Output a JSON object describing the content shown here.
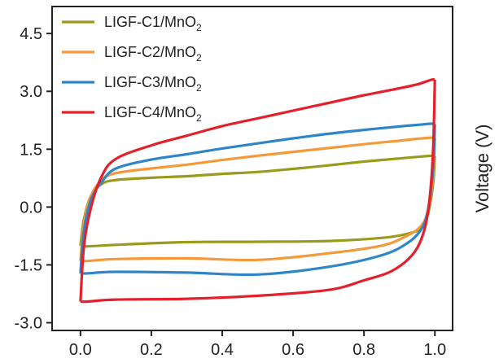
{
  "chart_data": {
    "type": "line",
    "title": "",
    "xlabel": "",
    "ylabel": "Voltage (V)",
    "xlim": [
      -0.08,
      1.05
    ],
    "ylim": [
      -3.2,
      5.2
    ],
    "xticks": [
      0.0,
      0.2,
      0.4,
      0.6,
      0.8,
      1.0
    ],
    "xtick_labels": [
      "0.0",
      "0.2",
      "0.4",
      "0.6",
      "0.8",
      "1.0"
    ],
    "yticks": [
      -3.0,
      -1.5,
      0.0,
      1.5,
      3.0,
      4.5
    ],
    "ytick_labels": [
      "-3.0",
      "-1.5",
      "0.0",
      "1.5",
      "3.0",
      "4.5"
    ],
    "grid": false,
    "legend_position": "top-left",
    "series": [
      {
        "name": "LIGF-C1/MnO2",
        "name_main": "LIGF-C1/MnO",
        "name_sub": "2",
        "color": "#9a9a1c",
        "forward": [
          [
            0.0,
            -1.0
          ],
          [
            0.01,
            -0.3
          ],
          [
            0.03,
            0.3
          ],
          [
            0.06,
            0.6
          ],
          [
            0.1,
            0.7
          ],
          [
            0.2,
            0.76
          ],
          [
            0.3,
            0.8
          ],
          [
            0.4,
            0.86
          ],
          [
            0.5,
            0.91
          ],
          [
            0.6,
            0.99
          ],
          [
            0.7,
            1.08
          ],
          [
            0.8,
            1.18
          ],
          [
            0.9,
            1.26
          ],
          [
            0.95,
            1.3
          ],
          [
            0.99,
            1.33
          ],
          [
            1.0,
            1.32
          ]
        ],
        "reverse": [
          [
            1.0,
            1.32
          ],
          [
            0.995,
            0.6
          ],
          [
            0.98,
            -0.2
          ],
          [
            0.96,
            -0.55
          ],
          [
            0.92,
            -0.7
          ],
          [
            0.85,
            -0.8
          ],
          [
            0.7,
            -0.88
          ],
          [
            0.5,
            -0.9
          ],
          [
            0.3,
            -0.91
          ],
          [
            0.1,
            -0.98
          ],
          [
            0.02,
            -1.02
          ],
          [
            0.0,
            -1.0
          ]
        ]
      },
      {
        "name": "LIGF-C2/MnO2",
        "name_main": "LIGF-C2/MnO",
        "name_sub": "2",
        "color": "#f39a3a",
        "forward": [
          [
            0.0,
            -1.4
          ],
          [
            0.01,
            -0.4
          ],
          [
            0.03,
            0.3
          ],
          [
            0.06,
            0.7
          ],
          [
            0.1,
            0.88
          ],
          [
            0.2,
            1.0
          ],
          [
            0.3,
            1.1
          ],
          [
            0.4,
            1.22
          ],
          [
            0.5,
            1.33
          ],
          [
            0.6,
            1.43
          ],
          [
            0.7,
            1.53
          ],
          [
            0.8,
            1.63
          ],
          [
            0.9,
            1.72
          ],
          [
            0.95,
            1.77
          ],
          [
            0.99,
            1.8
          ],
          [
            1.0,
            1.78
          ]
        ],
        "reverse": [
          [
            1.0,
            1.78
          ],
          [
            0.995,
            0.8
          ],
          [
            0.98,
            -0.1
          ],
          [
            0.96,
            -0.5
          ],
          [
            0.92,
            -0.75
          ],
          [
            0.85,
            -1.0
          ],
          [
            0.7,
            -1.2
          ],
          [
            0.5,
            -1.37
          ],
          [
            0.3,
            -1.33
          ],
          [
            0.1,
            -1.35
          ],
          [
            0.02,
            -1.4
          ],
          [
            0.0,
            -1.4
          ]
        ]
      },
      {
        "name": "LIGF-C3/MnO2",
        "name_main": "LIGF-C3/MnO",
        "name_sub": "2",
        "color": "#2e86c8",
        "forward": [
          [
            0.0,
            -1.72
          ],
          [
            0.01,
            -0.6
          ],
          [
            0.03,
            0.2
          ],
          [
            0.06,
            0.65
          ],
          [
            0.1,
            1.0
          ],
          [
            0.2,
            1.23
          ],
          [
            0.3,
            1.37
          ],
          [
            0.4,
            1.52
          ],
          [
            0.5,
            1.65
          ],
          [
            0.6,
            1.78
          ],
          [
            0.7,
            1.9
          ],
          [
            0.8,
            2.0
          ],
          [
            0.9,
            2.09
          ],
          [
            0.95,
            2.13
          ],
          [
            0.99,
            2.16
          ],
          [
            1.0,
            2.15
          ]
        ],
        "reverse": [
          [
            1.0,
            2.15
          ],
          [
            0.995,
            1.0
          ],
          [
            0.98,
            -0.1
          ],
          [
            0.96,
            -0.6
          ],
          [
            0.92,
            -0.95
          ],
          [
            0.85,
            -1.25
          ],
          [
            0.7,
            -1.55
          ],
          [
            0.5,
            -1.75
          ],
          [
            0.3,
            -1.7
          ],
          [
            0.1,
            -1.68
          ],
          [
            0.02,
            -1.72
          ],
          [
            0.0,
            -1.72
          ]
        ]
      },
      {
        "name": "LIGF-C4/MnO2",
        "name_main": "LIGF-C4/MnO",
        "name_sub": "2",
        "color": "#e3202b",
        "forward": [
          [
            0.0,
            -2.45
          ],
          [
            0.01,
            -1.0
          ],
          [
            0.03,
            0.0
          ],
          [
            0.06,
            0.8
          ],
          [
            0.1,
            1.25
          ],
          [
            0.2,
            1.6
          ],
          [
            0.3,
            1.85
          ],
          [
            0.4,
            2.1
          ],
          [
            0.5,
            2.3
          ],
          [
            0.6,
            2.5
          ],
          [
            0.7,
            2.7
          ],
          [
            0.8,
            2.9
          ],
          [
            0.9,
            3.08
          ],
          [
            0.95,
            3.18
          ],
          [
            0.99,
            3.3
          ],
          [
            1.0,
            3.3
          ]
        ],
        "reverse": [
          [
            1.0,
            3.3
          ],
          [
            0.995,
            1.5
          ],
          [
            0.985,
            0.2
          ],
          [
            0.97,
            -0.6
          ],
          [
            0.94,
            -1.2
          ],
          [
            0.88,
            -1.65
          ],
          [
            0.8,
            -1.9
          ],
          [
            0.7,
            -2.15
          ],
          [
            0.5,
            -2.3
          ],
          [
            0.3,
            -2.38
          ],
          [
            0.1,
            -2.4
          ],
          [
            0.02,
            -2.45
          ],
          [
            0.0,
            -2.45
          ]
        ]
      }
    ]
  }
}
